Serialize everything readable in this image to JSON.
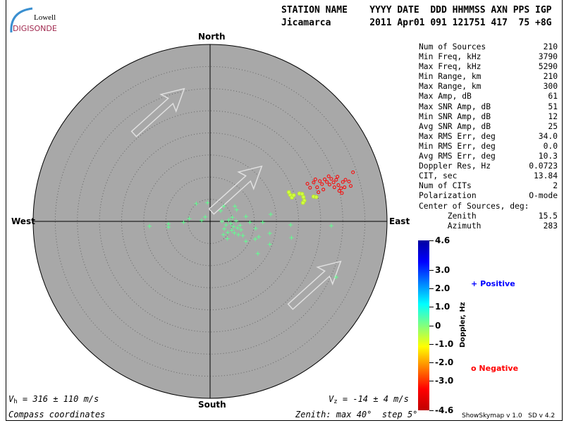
{
  "logo": {
    "top": "Lowell",
    "bottom": "DIGISONDE"
  },
  "header": {
    "line1": "STATION NAME    YYYY DATE  DDD HHMMSS AXN PPS IGP",
    "line2": "Jicamarca       2011 Apr01 091 121751 417  75 +8G"
  },
  "directions": {
    "north": "North",
    "south": "South",
    "east": "East",
    "west": "West"
  },
  "stats": [
    {
      "label": "Num of Sources",
      "value": "210"
    },
    {
      "label": "Min Freq, kHz",
      "value": "3790"
    },
    {
      "label": "Max Freq, kHz",
      "value": "5290"
    },
    {
      "label": "Min Range, km",
      "value": "210"
    },
    {
      "label": "Max Range, km",
      "value": "300"
    },
    {
      "label": "Max Amp, dB",
      "value": "61"
    },
    {
      "label": "Max SNR Amp, dB",
      "value": "51"
    },
    {
      "label": "Min SNR Amp, dB",
      "value": "12"
    },
    {
      "label": "Avg SNR Amp, dB",
      "value": "25"
    },
    {
      "label": "Max RMS Err, deg",
      "value": "34.0"
    },
    {
      "label": "Min RMS Err, deg",
      "value": "0.0"
    },
    {
      "label": "Avg RMS Err, deg",
      "value": "10.3"
    },
    {
      "label": "Doppler Res, Hz",
      "value": "0.0723"
    },
    {
      "label": "CIT, sec",
      "value": "13.84"
    },
    {
      "label": "Num of CITs",
      "value": "2"
    },
    {
      "label": "Polarization",
      "value": "O-mode"
    },
    {
      "label": "Center of Sources, deg:",
      "value": ""
    },
    {
      "label": "      Zenith",
      "value": "15.5"
    },
    {
      "label": "      Azimuth",
      "value": "283"
    }
  ],
  "colorbar": {
    "title": "Doppler, Hz",
    "ticks": [
      "4.6",
      "3.0",
      "2.0",
      "1.0",
      "0",
      "-1.0",
      "-2.0",
      "-3.0",
      "-4.6"
    ],
    "tick_values": [
      4.6,
      3.0,
      2.0,
      1.0,
      0,
      -1.0,
      -2.0,
      -3.0,
      -4.6
    ],
    "colors": [
      "#0000a0",
      "#0000ff",
      "#0080ff",
      "#00ffff",
      "#80ff80",
      "#ffff00",
      "#ff8000",
      "#ff0000",
      "#c00000"
    ]
  },
  "legend": {
    "positive": "Positive",
    "negative": "Negative",
    "positive_color": "#0000ff",
    "negative_color": "#ff0000"
  },
  "footer": {
    "vh": "= 316 ± 110 m/s",
    "vh_sym": "V",
    "vh_sub": "h",
    "vz": "= -14 ± 4 m/s",
    "vz_sym": "V",
    "vz_sub": "z",
    "coords": "Compass coordinates",
    "zenith": "Zenith: max 40°  step 5°",
    "version": "ShowSkymap v 1.0   SD v 4.2"
  },
  "chart_data": {
    "type": "scatter",
    "projection": "polar skymap, compass coordinates",
    "zenith_max_deg": 40,
    "zenith_step_deg": 5,
    "units": "degrees east / north of zenith",
    "background": "#a8a8a8",
    "series": [
      {
        "marker": "plus",
        "color": "#60ff90",
        "points": [
          [
            -13.7,
            -1.1
          ],
          [
            -9.4,
            -0.6
          ],
          [
            -9.4,
            -1.3
          ],
          [
            -6.0,
            -0.2
          ],
          [
            -4.7,
            0.6
          ],
          [
            -3.1,
            4.0
          ],
          [
            -0.6,
            4.2
          ],
          [
            -1.9,
            0.2
          ],
          [
            -1.1,
            1.0
          ],
          [
            3.1,
            3.4
          ],
          [
            2.4,
            2.4
          ],
          [
            5.6,
            3.4
          ],
          [
            6.0,
            2.6
          ],
          [
            8.1,
            1.1
          ],
          [
            13.7,
            1.6
          ],
          [
            11.9,
            -0.2
          ],
          [
            18.2,
            -0.8
          ],
          [
            27.4,
            -1.0
          ],
          [
            18.4,
            -3.7
          ],
          [
            13.5,
            -2.7
          ],
          [
            13.5,
            -5.2
          ],
          [
            10.8,
            -7.3
          ],
          [
            11.0,
            -3.5
          ],
          [
            10.2,
            -4.0
          ],
          [
            8.1,
            -4.5
          ],
          [
            10.3,
            -1.6
          ],
          [
            9.0,
            -0.2
          ],
          [
            7.4,
            -3.2
          ],
          [
            3.9,
            -3.9
          ],
          [
            4.7,
            -0.5
          ],
          [
            4.2,
            0.3
          ],
          [
            5.3,
            -1.2
          ],
          [
            3.6,
            -0.8
          ],
          [
            5.9,
            0.1
          ],
          [
            4.9,
            -2.0
          ],
          [
            6.2,
            -1.5
          ],
          [
            3.2,
            -1.7
          ],
          [
            5.5,
            -2.6
          ],
          [
            6.8,
            -0.9
          ],
          [
            4.0,
            -2.5
          ],
          [
            2.7,
            0.0
          ],
          [
            6.4,
            -3.0
          ],
          [
            5.0,
            0.9
          ],
          [
            3.0,
            -3.0
          ],
          [
            28.5,
            -12.6
          ],
          [
            7.0,
            -1.9
          ]
        ]
      },
      {
        "marker": "circle-filled",
        "color": "#d0ff40",
        "points": [
          [
            18.1,
            6.0
          ],
          [
            17.8,
            6.6
          ],
          [
            18.5,
            5.4
          ],
          [
            20.2,
            6.3
          ],
          [
            20.8,
            6.2
          ],
          [
            21.1,
            5.5
          ],
          [
            21.3,
            4.7
          ],
          [
            21.0,
            4.2
          ],
          [
            23.4,
            5.6
          ],
          [
            24.0,
            5.5
          ],
          [
            18.9,
            5.9
          ]
        ]
      },
      {
        "marker": "circle",
        "color": "#ff0000",
        "points": [
          [
            22.0,
            8.5
          ],
          [
            22.6,
            7.6
          ],
          [
            23.4,
            8.8
          ],
          [
            24.2,
            7.7
          ],
          [
            24.8,
            9.1
          ],
          [
            25.3,
            8.4
          ],
          [
            25.9,
            9.5
          ],
          [
            26.4,
            8.9
          ],
          [
            27.0,
            8.3
          ],
          [
            27.4,
            9.6
          ],
          [
            27.9,
            8.8
          ],
          [
            28.5,
            9.4
          ],
          [
            28.1,
            7.7
          ],
          [
            29.0,
            8.2
          ],
          [
            29.6,
            7.5
          ],
          [
            29.2,
            6.9
          ],
          [
            30.0,
            8.9
          ],
          [
            30.6,
            9.4
          ],
          [
            31.4,
            9.0
          ],
          [
            32.3,
            11.1
          ],
          [
            31.8,
            8.0
          ],
          [
            24.5,
            6.6
          ],
          [
            23.8,
            9.5
          ],
          [
            26.8,
            10.2
          ],
          [
            28.8,
            10.1
          ],
          [
            29.8,
            6.4
          ],
          [
            30.4,
            7.7
          ],
          [
            25.6,
            7.2
          ]
        ]
      }
    ]
  }
}
